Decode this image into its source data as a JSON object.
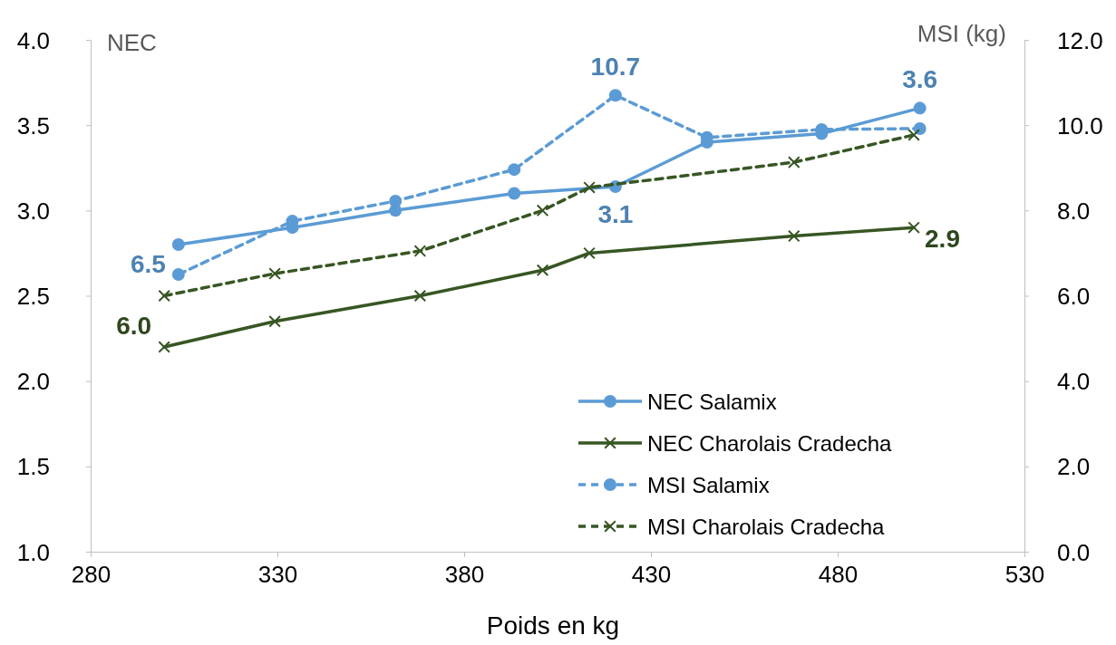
{
  "chart_data": {
    "type": "line",
    "xlabel": "Poids en kg",
    "ylabel": "NEC",
    "y2label": "MSI (kg)",
    "xlim": [
      280,
      530
    ],
    "xticks": [
      280,
      330,
      380,
      430,
      480,
      530
    ],
    "ylim": [
      1.0,
      4.0
    ],
    "yticks": [
      {
        "value": 1,
        "label": "1.0"
      },
      {
        "value": 1.5,
        "label": "1.5"
      },
      {
        "value": 2,
        "label": "2.0"
      },
      {
        "value": 2.5,
        "label": "2.5"
      },
      {
        "value": 3,
        "label": "3.0"
      },
      {
        "value": 3.5,
        "label": "3.5"
      },
      {
        "value": 4,
        "label": "4.0"
      }
    ],
    "y2lim": [
      0,
      12
    ],
    "y2ticks": [
      {
        "value": 0,
        "label": "0.0"
      },
      {
        "value": 2,
        "label": "2.0"
      },
      {
        "value": 4,
        "label": "4.0"
      },
      {
        "value": 6,
        "label": "6.0"
      },
      {
        "value": 8,
        "label": "8.0"
      },
      {
        "value": 10,
        "label": "10.0"
      },
      {
        "value": 12,
        "label": "12.0"
      }
    ],
    "grid": false,
    "legend": "bottom right",
    "series": [
      {
        "name": "NEC Salamix",
        "color": "#5b9bd5",
        "marker": "circle",
        "line_style": "solid",
        "x": [
          303.5,
          334,
          361.6,
          393.4,
          420.5,
          445,
          475.7,
          502
        ],
        "values": [
          2.8,
          2.9,
          3.0,
          3.1,
          3.14,
          3.4,
          3.45,
          3.6
        ],
        "value_labels": [
          null,
          null,
          null,
          null,
          "3.1",
          null,
          null,
          "3.6"
        ]
      },
      {
        "name": "NEC Charolais Cradecha",
        "color": "#375623",
        "marker": "cross",
        "line_style": "solid",
        "x": [
          299.7,
          329.3,
          368.2,
          401,
          413.5,
          468.3,
          500.4
        ],
        "values": [
          2.2,
          2.35,
          2.5,
          2.65,
          2.75,
          2.85,
          2.9
        ],
        "value_labels": [
          null,
          null,
          null,
          null,
          null,
          null,
          "2.9"
        ]
      },
      {
        "name": "MSI Salamix",
        "color": "#5b9bd5",
        "marker": "circle",
        "line_style": "dashed",
        "axis": "y2",
        "x": [
          303.5,
          334,
          361.6,
          393.4,
          420.5,
          445,
          475.7,
          502
        ],
        "values": [
          6.5,
          7.75,
          8.22,
          8.96,
          10.7,
          9.71,
          9.9,
          9.92
        ],
        "value_labels": [
          "6.5",
          null,
          null,
          null,
          "10.7",
          null,
          null,
          null
        ]
      },
      {
        "name": "MSI Charolais Cradecha",
        "color": "#375623",
        "marker": "cross",
        "line_style": "dashed",
        "axis": "y2",
        "x": [
          299.7,
          329.3,
          368.2,
          401,
          413.5,
          468.3,
          500.4
        ],
        "values": [
          6.0,
          6.52,
          7.05,
          8.0,
          8.54,
          9.13,
          9.77
        ],
        "value_labels": [
          "6.0",
          null,
          null,
          null,
          null,
          null,
          null
        ]
      }
    ]
  }
}
